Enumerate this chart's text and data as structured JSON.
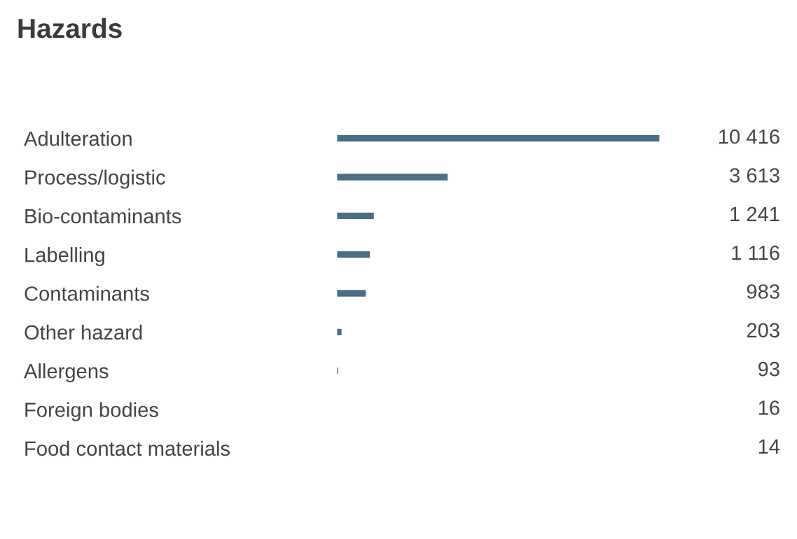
{
  "chart_data": {
    "type": "bar",
    "orientation": "horizontal",
    "title": "Hazards",
    "categories": [
      "Adulteration",
      "Process/logistic",
      "Bio-contaminants",
      "Labelling",
      "Contaminants",
      "Other hazard",
      "Allergens",
      "Foreign bodies",
      "Food contact materials"
    ],
    "values": [
      10416,
      3613,
      1241,
      1116,
      983,
      203,
      93,
      16,
      14
    ],
    "value_labels": [
      "10 416",
      "3 613",
      "1 241",
      "1 116",
      "983",
      "203",
      "93",
      "16",
      "14"
    ],
    "color": "#4a6f85",
    "grid": false,
    "legend": false
  }
}
